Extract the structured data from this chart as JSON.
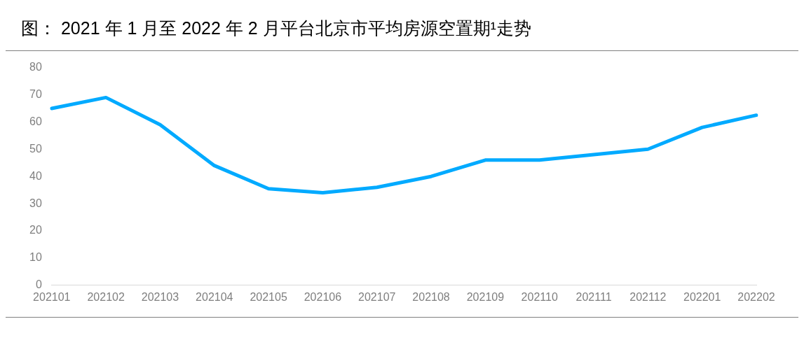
{
  "chart_data": {
    "type": "line",
    "title": "图：    2021 年 1 月至 2022 年 2 月平台北京市平均房源空置期¹走势",
    "categories": [
      "202101",
      "202102",
      "202103",
      "202104",
      "202105",
      "202106",
      "202107",
      "202108",
      "202109",
      "202110",
      "202111",
      "202112",
      "202201",
      "202202"
    ],
    "series": [
      {
        "color": "#00aaff",
        "values": [
          65,
          69,
          59,
          44,
          35.5,
          34,
          36,
          40,
          46,
          46,
          48,
          50,
          58,
          62.5
        ]
      }
    ],
    "ylim": [
      0,
      80
    ],
    "yticks": [
      0,
      10,
      20,
      30,
      40,
      50,
      60,
      70,
      80
    ],
    "grid": false,
    "legend": false,
    "marker": "none",
    "line_style": "solid"
  }
}
